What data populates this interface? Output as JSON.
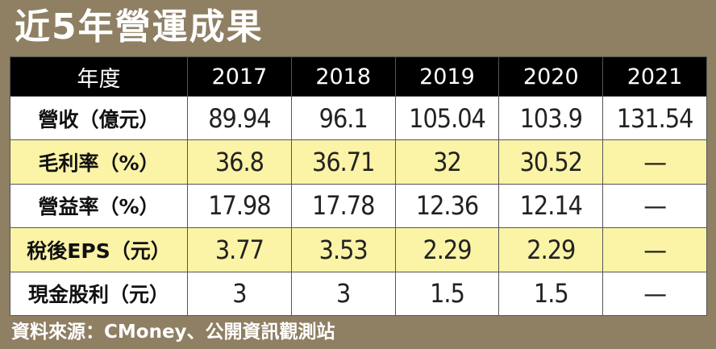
{
  "title": "近5年營運成果",
  "source": "資料來源：CMoney、公開資訊觀測站",
  "colors": {
    "background": "#8f7f63",
    "header_bg": "#000000",
    "highlight_row": "#fbf3a6"
  },
  "chart_data": {
    "type": "table",
    "title": "近5年營運成果",
    "header": [
      "年度",
      "2017",
      "2018",
      "2019",
      "2020",
      "2021"
    ],
    "rows": [
      {
        "label": "營收（億元）",
        "values": [
          "89.94",
          "96.1",
          "105.04",
          "103.9",
          "131.54"
        ],
        "highlight": false
      },
      {
        "label": "毛利率（%）",
        "values": [
          "36.8",
          "36.71",
          "32",
          "30.52",
          "—"
        ],
        "highlight": true
      },
      {
        "label": "營益率（%）",
        "values": [
          "17.98",
          "17.78",
          "12.36",
          "12.14",
          "—"
        ],
        "highlight": false
      },
      {
        "label": "稅後EPS（元）",
        "values": [
          "3.77",
          "3.53",
          "2.29",
          "2.29",
          "—"
        ],
        "highlight": true
      },
      {
        "label": "現金股利（元）",
        "values": [
          "3",
          "3",
          "1.5",
          "1.5",
          "—"
        ],
        "highlight": false
      }
    ]
  }
}
